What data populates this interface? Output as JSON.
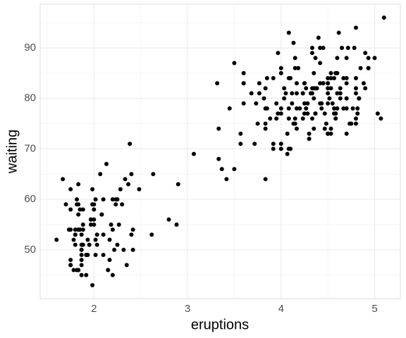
{
  "chart_data": {
    "type": "scatter",
    "x_label": "eruptions",
    "y_label": "waiting",
    "color": "#000000",
    "grid": true,
    "xlim": [
      1.425,
      5.275
    ],
    "xticks": [
      2,
      3,
      4,
      5
    ],
    "x_minor_ticks": [
      1.5,
      2.5,
      3.5,
      4.5
    ],
    "ylim": [
      40.35,
      98.65
    ],
    "yticks": [
      50,
      60,
      70,
      80,
      90
    ],
    "y_minor_ticks": [
      45,
      55,
      65,
      75,
      85,
      95
    ],
    "x": [
      3.6,
      1.8,
      3.333,
      2.283,
      4.533,
      2.883,
      4.7,
      3.6,
      1.95,
      4.35,
      1.833,
      3.917,
      4.2,
      1.75,
      4.7,
      2.167,
      1.75,
      4.8,
      1.6,
      4.25,
      1.8,
      1.75,
      3.45,
      3.067,
      4.533,
      3.6,
      1.967,
      4.083,
      3.85,
      4.433,
      4.3,
      4.467,
      3.367,
      4.033,
      3.833,
      2.017,
      1.867,
      4.833,
      1.833,
      4.783,
      4.35,
      1.883,
      4.567,
      1.75,
      4.533,
      3.317,
      3.833,
      2.1,
      4.633,
      2,
      4.8,
      4.716,
      1.833,
      4.833,
      1.733,
      4.883,
      3.717,
      1.667,
      4.567,
      4.317,
      2.233,
      4.5,
      1.75,
      4.8,
      1.817,
      4.4,
      4.167,
      4.7,
      2.067,
      4.7,
      4.033,
      1.967,
      4.5,
      4,
      1.983,
      5.067,
      2.017,
      4.567,
      3.883,
      3.6,
      4.133,
      4.333,
      4.1,
      2.633,
      4.067,
      4.933,
      3.95,
      4.517,
      2.167,
      4,
      2.2,
      4.333,
      1.867,
      4.817,
      1.833,
      4.3,
      4.667,
      3.75,
      1.867,
      4.9,
      2.483,
      4.367,
      2.1,
      4.5,
      4.05,
      1.867,
      4.7,
      1.783,
      4.85,
      3.683,
      4.733,
      2.3,
      4.9,
      4.417,
      1.7,
      4.633,
      2.317,
      4.6,
      1.817,
      4.417,
      2.617,
      4.067,
      4.25,
      1.967,
      4.6,
      3.767,
      1.917,
      4.5,
      2.267,
      4.65,
      1.867,
      4.167,
      2.8,
      4.333,
      1.833,
      4.383,
      1.883,
      4.933,
      2.033,
      3.733,
      4.233,
      2.233,
      4.533,
      4.817,
      4.333,
      1.983,
      4.633,
      2.017,
      5.1,
      1.8,
      5.033,
      4,
      2.4,
      4.6,
      3.567,
      4,
      4.5,
      4.083,
      1.8,
      3.967,
      2.2,
      4.15,
      2,
      3.833,
      3.5,
      4.583,
      2.367,
      5,
      1.933,
      4.617,
      1.917,
      2.083,
      4.583,
      3.333,
      4.167,
      4.333,
      4.5,
      2.417,
      4,
      4.167,
      1.883,
      4.583,
      4.25,
      3.767,
      2.033,
      4.433,
      4.083,
      1.833,
      4.417,
      2.183,
      4.8,
      1.833,
      4.8,
      4.1,
      3.966,
      4.233,
      3.5,
      4.366,
      2.25,
      4.667,
      2.1,
      4.35,
      4.133,
      1.867,
      4.6,
      1.783,
      4.367,
      3.85,
      1.933,
      4.5,
      2.383,
      4.7,
      1.867,
      3.833,
      3.417,
      4.233,
      2.4,
      4.8,
      2,
      4.15,
      1.867,
      4.267,
      1.75,
      4.483,
      4,
      4.117,
      4.083,
      4.267,
      3.917,
      4.55,
      4.083,
      2.417,
      4.183,
      2.217,
      4.45,
      1.883,
      1.85,
      4.283,
      3.95,
      2.333,
      4.15,
      2.35,
      4.933,
      2.9,
      4.583,
      3.833,
      2.083,
      4.367,
      2.133,
      4.35,
      2.2,
      4.45,
      3.567,
      4.5,
      4.15,
      3.817,
      3.917,
      4.45,
      2,
      4.283,
      4.767,
      4.533,
      1.85,
      4.25,
      1.983,
      2.25,
      4.75,
      4.117,
      2.15,
      4.417,
      1.817,
      4.467
    ],
    "values": [
      79,
      54,
      74,
      62,
      85,
      55,
      88,
      85,
      51,
      85,
      54,
      84,
      78,
      47,
      83,
      52,
      62,
      84,
      52,
      79,
      51,
      47,
      78,
      69,
      74,
      83,
      55,
      76,
      78,
      79,
      73,
      77,
      66,
      80,
      74,
      52,
      48,
      80,
      59,
      90,
      80,
      58,
      84,
      58,
      73,
      83,
      64,
      53,
      82,
      59,
      75,
      90,
      54,
      80,
      54,
      83,
      71,
      64,
      77,
      81,
      59,
      84,
      48,
      82,
      60,
      92,
      78,
      78,
      65,
      73,
      82,
      56,
      79,
      71,
      62,
      76,
      60,
      78,
      76,
      83,
      75,
      82,
      70,
      65,
      73,
      88,
      76,
      80,
      48,
      86,
      60,
      90,
      50,
      78,
      63,
      72,
      84,
      75,
      51,
      82,
      62,
      88,
      49,
      83,
      81,
      47,
      84,
      52,
      86,
      81,
      75,
      59,
      89,
      79,
      59,
      81,
      50,
      85,
      59,
      87,
      53,
      69,
      77,
      56,
      88,
      81,
      45,
      82,
      55,
      90,
      45,
      83,
      56,
      89,
      46,
      82,
      51,
      86,
      53,
      79,
      81,
      60,
      82,
      77,
      76,
      59,
      80,
      49,
      96,
      53,
      77,
      77,
      65,
      81,
      71,
      70,
      81,
      93,
      53,
      89,
      45,
      86,
      58,
      78,
      66,
      76,
      63,
      88,
      52,
      93,
      49,
      57,
      77,
      68,
      81,
      81,
      73,
      50,
      85,
      74,
      55,
      77,
      83,
      83,
      51,
      78,
      84,
      46,
      83,
      55,
      81,
      57,
      76,
      84,
      77,
      81,
      87,
      77,
      51,
      78,
      60,
      82,
      91,
      53,
      78,
      46,
      77,
      84,
      49,
      83,
      71,
      80,
      49,
      75,
      64,
      76,
      53,
      94,
      55,
      76,
      50,
      82,
      54,
      75,
      78,
      79,
      78,
      78,
      70,
      79,
      70,
      54,
      86,
      50,
      90,
      54,
      54,
      77,
      79,
      64,
      75,
      47,
      86,
      63,
      85,
      82,
      57,
      82,
      67,
      74,
      54,
      83,
      73,
      73,
      88,
      80,
      71,
      83,
      56,
      79,
      78,
      84,
      58,
      83,
      43,
      60,
      75,
      81,
      46,
      90,
      46,
      74
    ]
  }
}
